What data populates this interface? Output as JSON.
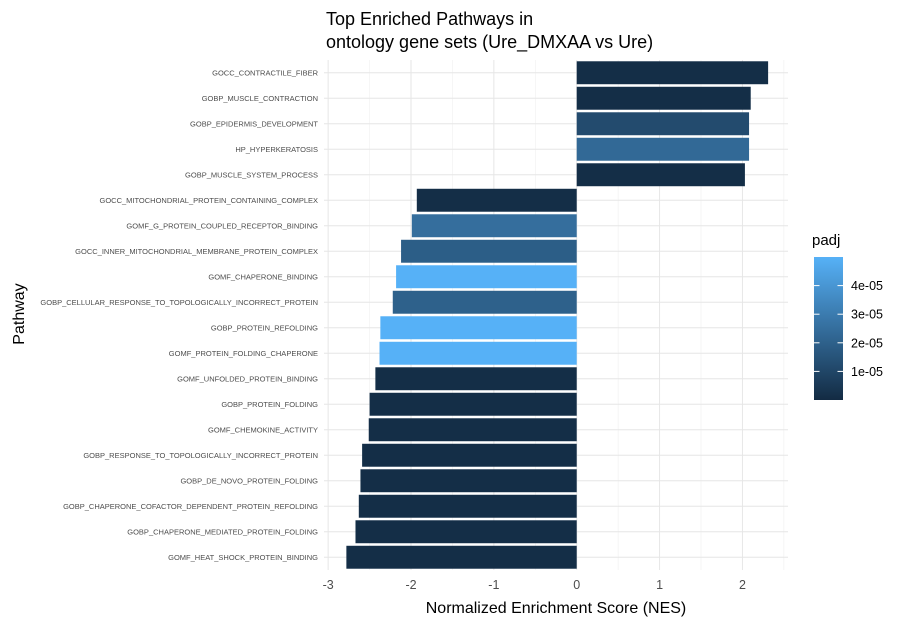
{
  "chart_data": {
    "type": "bar",
    "orientation": "horizontal",
    "title_lines": [
      "Top Enriched Pathways in",
      "ontology gene sets (Ure_DMXAA vs Ure)"
    ],
    "xlabel": "Normalized Enrichment Score (NES)",
    "ylabel": "Pathway",
    "xlim": [
      -3.05,
      2.55
    ],
    "xticks": [
      -3,
      -2,
      -1,
      0,
      1,
      2
    ],
    "grid": true,
    "legend": {
      "title": "padj",
      "position": "right",
      "scale_min": 0.0,
      "scale_max": 5e-05,
      "ticks": [
        1e-05,
        2e-05,
        3e-05,
        4e-05
      ],
      "tick_labels": [
        "1e-05",
        "2e-05",
        "3e-05",
        "4e-05"
      ],
      "color_low": "#132B43",
      "color_high": "#56B1F7"
    },
    "categories": [
      "GOCC_CONTRACTILE_FIBER",
      "GOBP_MUSCLE_CONTRACTION",
      "GOBP_EPIDERMIS_DEVELOPMENT",
      "HP_HYPERKERATOSIS",
      "GOBP_MUSCLE_SYSTEM_PROCESS",
      "GOCC_MITOCHONDRIAL_PROTEIN_CONTAINING_COMPLEX",
      "GOMF_G_PROTEIN_COUPLED_RECEPTOR_BINDING",
      "GOCC_INNER_MITOCHONDRIAL_MEMBRANE_PROTEIN_COMPLEX",
      "GOMF_CHAPERONE_BINDING",
      "GOBP_CELLULAR_RESPONSE_TO_TOPOLOGICALLY_INCORRECT_PROTEIN",
      "GOBP_PROTEIN_REFOLDING",
      "GOMF_PROTEIN_FOLDING_CHAPERONE",
      "GOMF_UNFOLDED_PROTEIN_BINDING",
      "GOBP_PROTEIN_FOLDING",
      "GOMF_CHEMOKINE_ACTIVITY",
      "GOBP_RESPONSE_TO_TOPOLOGICALLY_INCORRECT_PROTEIN",
      "GOBP_DE_NOVO_PROTEIN_FOLDING",
      "GOBP_CHAPERONE_COFACTOR_DEPENDENT_PROTEIN_REFOLDING",
      "GOBP_CHAPERONE_MEDIATED_PROTEIN_FOLDING",
      "GOMF_HEAT_SHOCK_PROTEIN_BINDING"
    ],
    "values": [
      2.31,
      2.1,
      2.08,
      2.08,
      2.03,
      -1.93,
      -1.99,
      -2.12,
      -2.18,
      -2.22,
      -2.37,
      -2.38,
      -2.43,
      -2.5,
      -2.51,
      -2.59,
      -2.61,
      -2.63,
      -2.67,
      -2.78
    ],
    "padj": [
      1e-06,
      1e-06,
      1.2e-05,
      2.3e-05,
      1e-06,
      1e-06,
      2.5e-05,
      1.9e-05,
      5e-05,
      2e-05,
      5e-05,
      5e-05,
      1e-06,
      1e-06,
      1e-06,
      1e-06,
      1e-06,
      1e-06,
      1e-06,
      1e-06
    ]
  }
}
